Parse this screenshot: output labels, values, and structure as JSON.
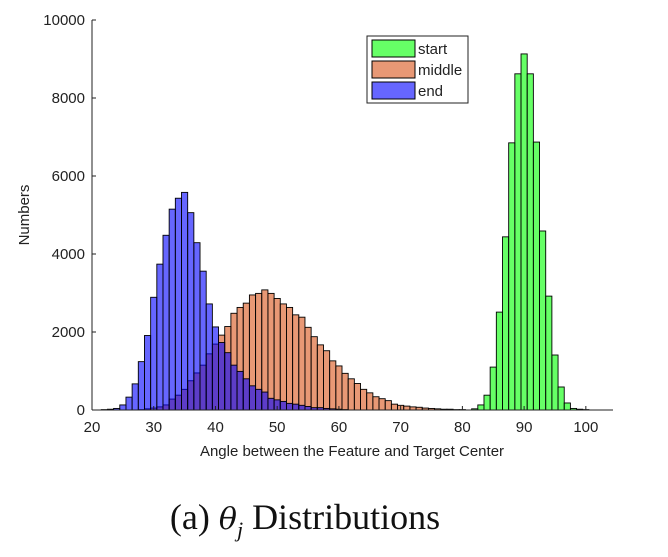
{
  "chart_data": {
    "type": "bar",
    "title": "",
    "xlabel": "Angle between the Feature and Target Center",
    "ylabel": "Numbers",
    "xlim": [
      20,
      104.4
    ],
    "ylim": [
      0,
      10000
    ],
    "xticks": [
      20,
      30,
      40,
      50,
      60,
      70,
      80,
      90,
      100
    ],
    "yticks": [
      0,
      2000,
      4000,
      6000,
      8000,
      10000
    ],
    "bin_width": 1,
    "grid": false,
    "legend_position": "top-right",
    "series": [
      {
        "name": "start",
        "color": "#00ff00",
        "x": [
          82,
          83,
          84,
          85,
          86,
          87,
          88,
          89,
          90,
          91,
          92,
          93,
          94,
          95,
          96,
          97,
          98,
          99,
          100
        ],
        "values": [
          30,
          130,
          380,
          1100,
          2510,
          4440,
          6850,
          8620,
          9130,
          8620,
          6870,
          4590,
          2920,
          1410,
          590,
          180,
          40,
          20,
          10
        ]
      },
      {
        "name": "middle",
        "color": "#d95319",
        "x": [
          28,
          29,
          30,
          31,
          32,
          33,
          34,
          35,
          36,
          37,
          38,
          39,
          40,
          41,
          42,
          43,
          44,
          45,
          46,
          47,
          48,
          49,
          50,
          51,
          52,
          53,
          54,
          55,
          56,
          57,
          58,
          59,
          60,
          61,
          62,
          63,
          64,
          65,
          66,
          67,
          68,
          69,
          70,
          71,
          72,
          73,
          74,
          75,
          76,
          77,
          78,
          79,
          80
        ],
        "values": [
          10,
          30,
          50,
          80,
          130,
          280,
          380,
          530,
          750,
          950,
          1150,
          1440,
          1690,
          1920,
          2140,
          2480,
          2630,
          2740,
          2950,
          2990,
          3080,
          2990,
          2860,
          2720,
          2630,
          2440,
          2380,
          2120,
          1880,
          1670,
          1520,
          1260,
          1130,
          940,
          800,
          680,
          530,
          440,
          340,
          290,
          240,
          150,
          120,
          100,
          80,
          70,
          50,
          40,
          30,
          20,
          20,
          10,
          10
        ]
      },
      {
        "name": "end",
        "color": "#0000ff",
        "x": [
          22,
          23,
          24,
          25,
          26,
          27,
          28,
          29,
          30,
          31,
          32,
          33,
          34,
          35,
          36,
          37,
          38,
          39,
          40,
          41,
          42,
          43,
          44,
          45,
          46,
          47,
          48,
          49,
          50,
          51,
          52,
          53,
          54,
          55,
          56,
          57,
          58,
          59,
          60,
          61
        ],
        "values": [
          10,
          20,
          40,
          130,
          330,
          670,
          1240,
          1910,
          2890,
          3740,
          4480,
          5150,
          5430,
          5580,
          5060,
          4290,
          3560,
          2720,
          2130,
          1730,
          1470,
          1150,
          990,
          800,
          620,
          530,
          460,
          300,
          260,
          220,
          170,
          150,
          120,
          90,
          60,
          60,
          40,
          30,
          20,
          10
        ]
      }
    ]
  },
  "caption": {
    "prefix": "(a)",
    "symbol": "θ",
    "subscript": "j",
    "suffix": "Distributions"
  }
}
